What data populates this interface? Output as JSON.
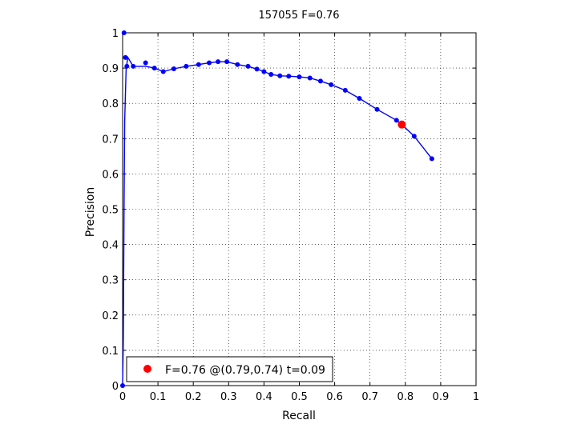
{
  "chart_data": {
    "type": "line",
    "title": "157055 F=0.76",
    "xlabel": "Recall",
    "ylabel": "Precision",
    "xlim": [
      0,
      1
    ],
    "ylim": [
      0,
      1
    ],
    "xticks": [
      0,
      0.1,
      0.2,
      0.3,
      0.4,
      0.5,
      0.6,
      0.7,
      0.8,
      0.9,
      1
    ],
    "yticks": [
      0,
      0.1,
      0.2,
      0.3,
      0.4,
      0.5,
      0.6,
      0.7,
      0.8,
      0.9,
      1
    ],
    "xtick_labels": [
      "0",
      "0.1",
      "0.2",
      "0.3",
      "0.4",
      "0.5",
      "0.6",
      "0.7",
      "0.8",
      "0.9",
      "1"
    ],
    "ytick_labels": [
      "0",
      "0.1",
      "0.2",
      "0.3",
      "0.4",
      "0.5",
      "0.6",
      "0.7",
      "0.8",
      "0.9",
      "1"
    ],
    "grid": true,
    "legend_position": "bottom-left",
    "series": [
      {
        "color": "#0000ff",
        "x": [
          0.0,
          0.002,
          0.004,
          0.006,
          0.01,
          0.015,
          0.03,
          0.065,
          0.09,
          0.115,
          0.145,
          0.18,
          0.215,
          0.245,
          0.27,
          0.295,
          0.325,
          0.355,
          0.38,
          0.4,
          0.42,
          0.445,
          0.47,
          0.5,
          0.53,
          0.56,
          0.59,
          0.63,
          0.67,
          0.72,
          0.775,
          0.79,
          0.825,
          0.875
        ],
        "y": [
          0.0,
          0.13,
          0.5,
          0.75,
          0.9,
          0.93,
          0.905,
          0.905,
          0.9,
          0.89,
          0.898,
          0.905,
          0.91,
          0.915,
          0.918,
          0.918,
          0.91,
          0.905,
          0.897,
          0.89,
          0.882,
          0.878,
          0.877,
          0.875,
          0.872,
          0.863,
          0.853,
          0.837,
          0.814,
          0.783,
          0.752,
          0.74,
          0.707,
          0.643
        ]
      }
    ],
    "marker_x": [
      0.0,
      0.004,
      0.008,
      0.012,
      0.03,
      0.065,
      0.09,
      0.115,
      0.145,
      0.18,
      0.215,
      0.245,
      0.27,
      0.295,
      0.325,
      0.355,
      0.38,
      0.4,
      0.42,
      0.445,
      0.47,
      0.5,
      0.53,
      0.56,
      0.59,
      0.63,
      0.67,
      0.72,
      0.775,
      0.825,
      0.875
    ],
    "marker_y": [
      0.0,
      1.0,
      0.93,
      0.905,
      0.905,
      0.915,
      0.9,
      0.89,
      0.898,
      0.905,
      0.91,
      0.915,
      0.918,
      0.918,
      0.91,
      0.905,
      0.897,
      0.89,
      0.882,
      0.878,
      0.877,
      0.875,
      0.872,
      0.863,
      0.853,
      0.837,
      0.814,
      0.783,
      0.752,
      0.707,
      0.643
    ],
    "best_point": {
      "x": 0.79,
      "y": 0.74,
      "color": "#ff0000"
    },
    "legend_entries": [
      "F=0.76 @(0.79,0.74) t=0.09"
    ]
  }
}
